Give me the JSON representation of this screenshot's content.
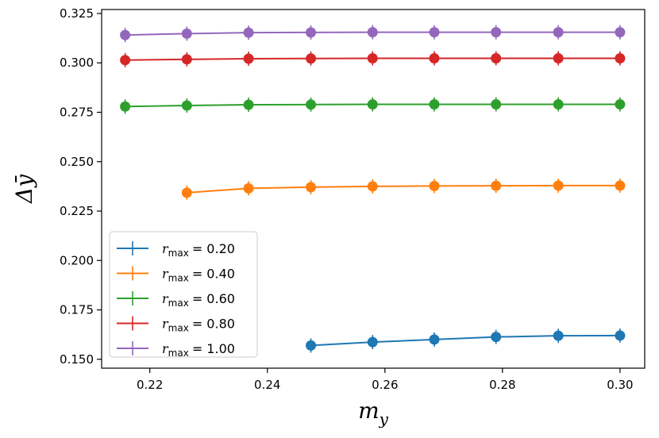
{
  "chart_data": {
    "type": "line",
    "title": "",
    "xlabel": "m",
    "xlabel_sub": "y",
    "ylabel": "Δȳ",
    "xlim": [
      0.2118,
      0.3042
    ],
    "ylim": [
      0.1455,
      0.327
    ],
    "xticks": [
      "0.22",
      "0.24",
      "0.26",
      "0.28",
      "0.30"
    ],
    "xtick_values": [
      0.22,
      0.24,
      0.26,
      0.28,
      0.3
    ],
    "yticks": [
      "0.150",
      "0.175",
      "0.200",
      "0.225",
      "0.250",
      "0.275",
      "0.300",
      "0.325"
    ],
    "ytick_values": [
      0.15,
      0.175,
      0.2,
      0.225,
      0.25,
      0.275,
      0.3,
      0.325
    ],
    "grid": false,
    "legend_position": "lower-left",
    "series": [
      {
        "name": "r_max = 0.20",
        "label_sub": "max",
        "label_value": "= 0.20",
        "color": "#1f77b4",
        "x": [
          0.2474,
          0.2579,
          0.2684,
          0.2789,
          0.2895,
          0.3
        ],
        "y": [
          0.157,
          0.1587,
          0.16,
          0.1613,
          0.1619,
          0.162
        ]
      },
      {
        "name": "r_max = 0.40",
        "label_sub": "max",
        "label_value": "= 0.40",
        "color": "#ff7f0e",
        "x": [
          0.2263,
          0.2368,
          0.2474,
          0.2579,
          0.2684,
          0.2789,
          0.2895,
          0.3
        ],
        "y": [
          0.2343,
          0.2365,
          0.2371,
          0.2375,
          0.2377,
          0.2378,
          0.2379,
          0.2379
        ]
      },
      {
        "name": "r_max = 0.60",
        "label_sub": "max",
        "label_value": "= 0.60",
        "color": "#2ca02c",
        "x": [
          0.2158,
          0.2263,
          0.2368,
          0.2474,
          0.2579,
          0.2684,
          0.2789,
          0.2895,
          0.3
        ],
        "y": [
          0.2779,
          0.2784,
          0.2788,
          0.2789,
          0.279,
          0.279,
          0.279,
          0.279,
          0.279
        ]
      },
      {
        "name": "r_max = 0.80",
        "label_sub": "max",
        "label_value": "= 0.80",
        "color": "#d62728",
        "x": [
          0.2158,
          0.2263,
          0.2368,
          0.2474,
          0.2579,
          0.2684,
          0.2789,
          0.2895,
          0.3
        ],
        "y": [
          0.3014,
          0.3018,
          0.3021,
          0.3022,
          0.3023,
          0.3023,
          0.3023,
          0.3023,
          0.3023
        ]
      },
      {
        "name": "r_max = 1.00",
        "label_sub": "max",
        "label_value": "= 1.00",
        "color": "#9467bd",
        "x": [
          0.2158,
          0.2263,
          0.2368,
          0.2474,
          0.2579,
          0.2684,
          0.2789,
          0.2895,
          0.3
        ],
        "y": [
          0.3141,
          0.3148,
          0.3153,
          0.3154,
          0.3155,
          0.3155,
          0.3155,
          0.3155,
          0.3155
        ]
      }
    ]
  }
}
